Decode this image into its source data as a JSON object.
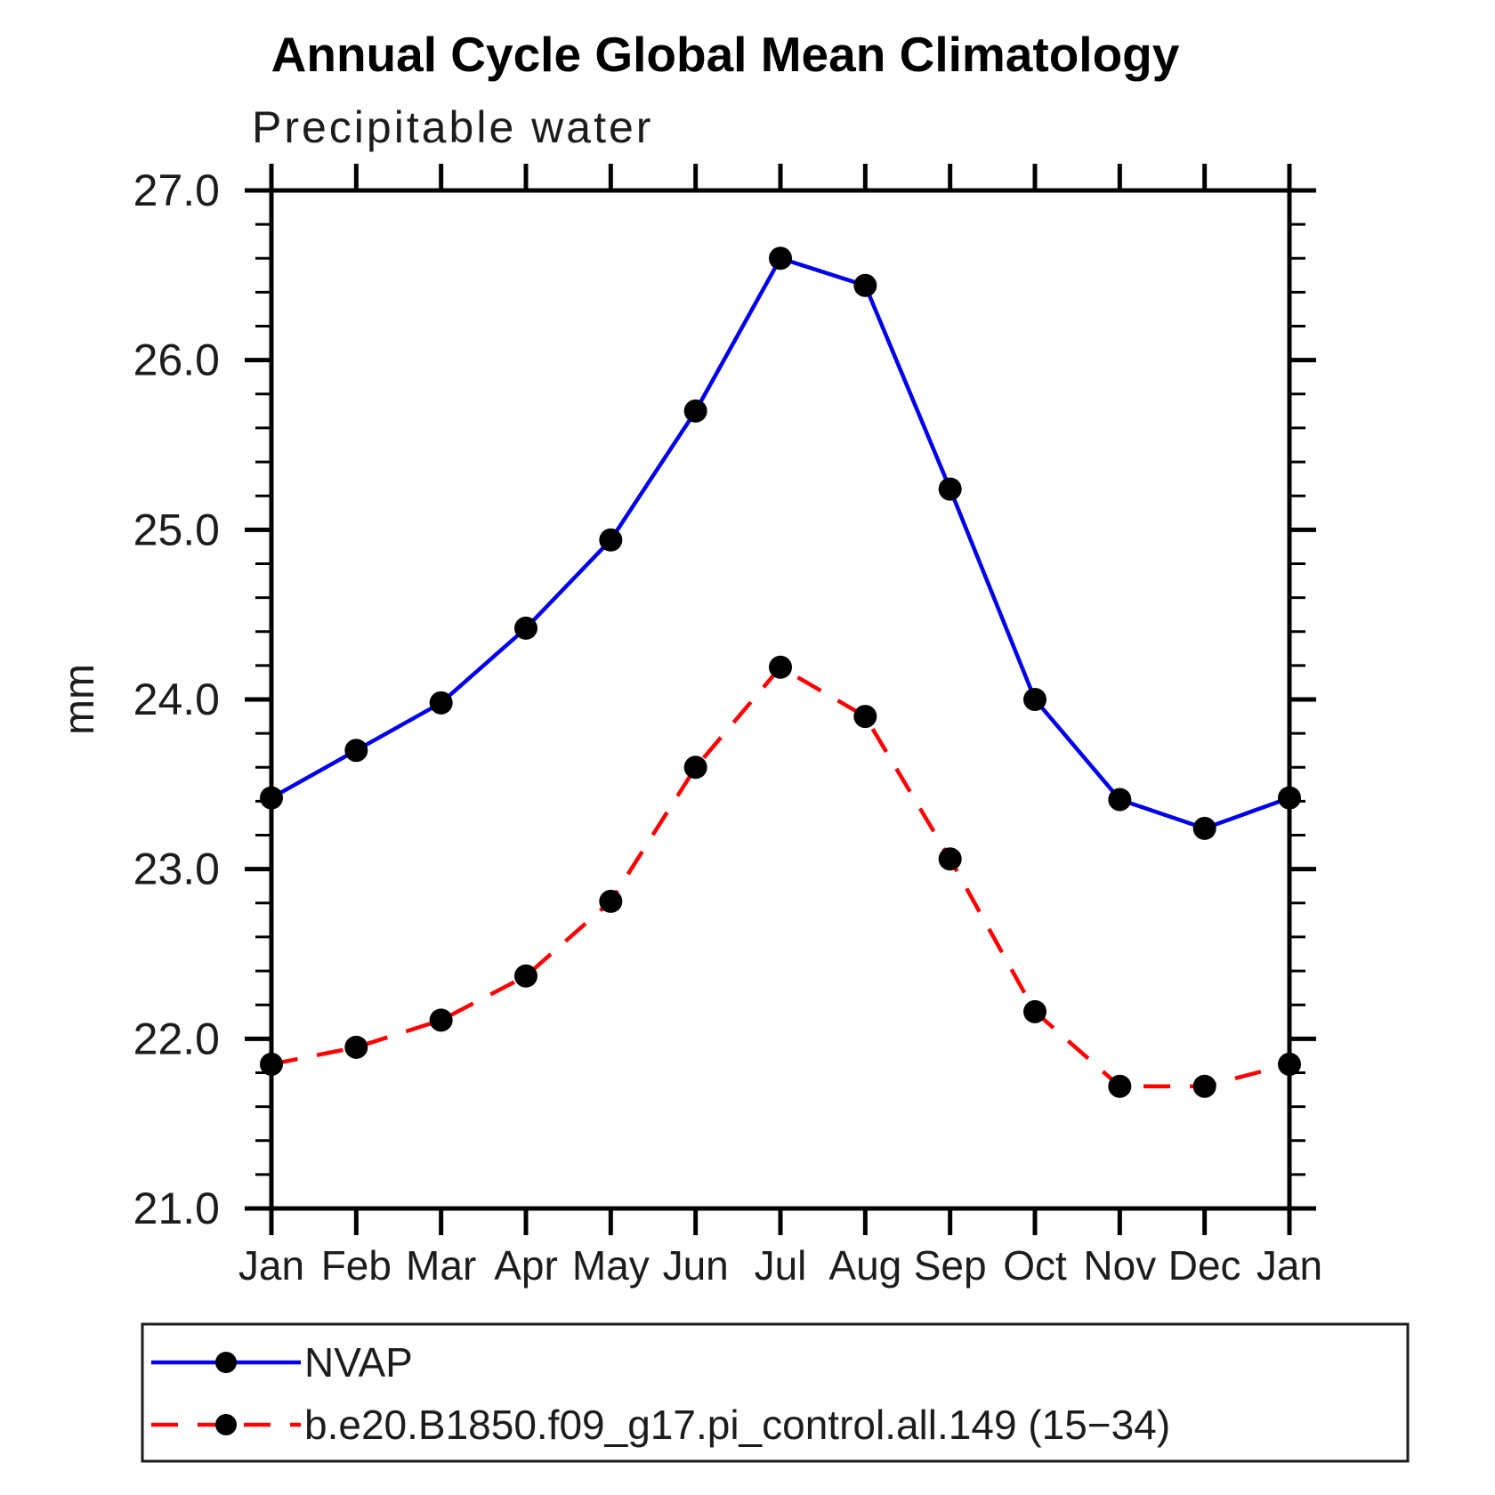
{
  "chart_data": {
    "type": "line",
    "title": "Annual Cycle Global Mean Climatology",
    "subtitle": "Precipitable water",
    "ylabel": "mm",
    "categories": [
      "Jan",
      "Feb",
      "Mar",
      "Apr",
      "May",
      "Jun",
      "Jul",
      "Aug",
      "Sep",
      "Oct",
      "Nov",
      "Dec",
      "Jan"
    ],
    "ylim": [
      21.0,
      27.0
    ],
    "ytick_step": 1.0,
    "ytick_minor_step": 0.2,
    "ytick_labels": [
      "21.0",
      "22.0",
      "23.0",
      "24.0",
      "25.0",
      "26.0",
      "27.0"
    ],
    "grid": false,
    "legend_position": "bottom-box",
    "axis_color": "#000000",
    "marker_color": "#000000",
    "series": [
      {
        "name": "NVAP",
        "color": "#0000ee",
        "style": "solid",
        "marker": "filled-circle",
        "values": [
          23.42,
          23.7,
          23.98,
          24.42,
          24.94,
          25.7,
          26.6,
          26.44,
          25.24,
          24.0,
          23.41,
          23.24,
          23.42
        ]
      },
      {
        "name": "b.e20.B1850.f09_g17.pi_control.all.149 (15−34)",
        "color": "#ff0000",
        "style": "dashed",
        "marker": "filled-circle",
        "values": [
          21.85,
          21.95,
          22.11,
          22.37,
          22.81,
          23.6,
          24.19,
          23.9,
          23.06,
          22.16,
          21.72,
          21.72,
          21.85
        ]
      }
    ]
  }
}
